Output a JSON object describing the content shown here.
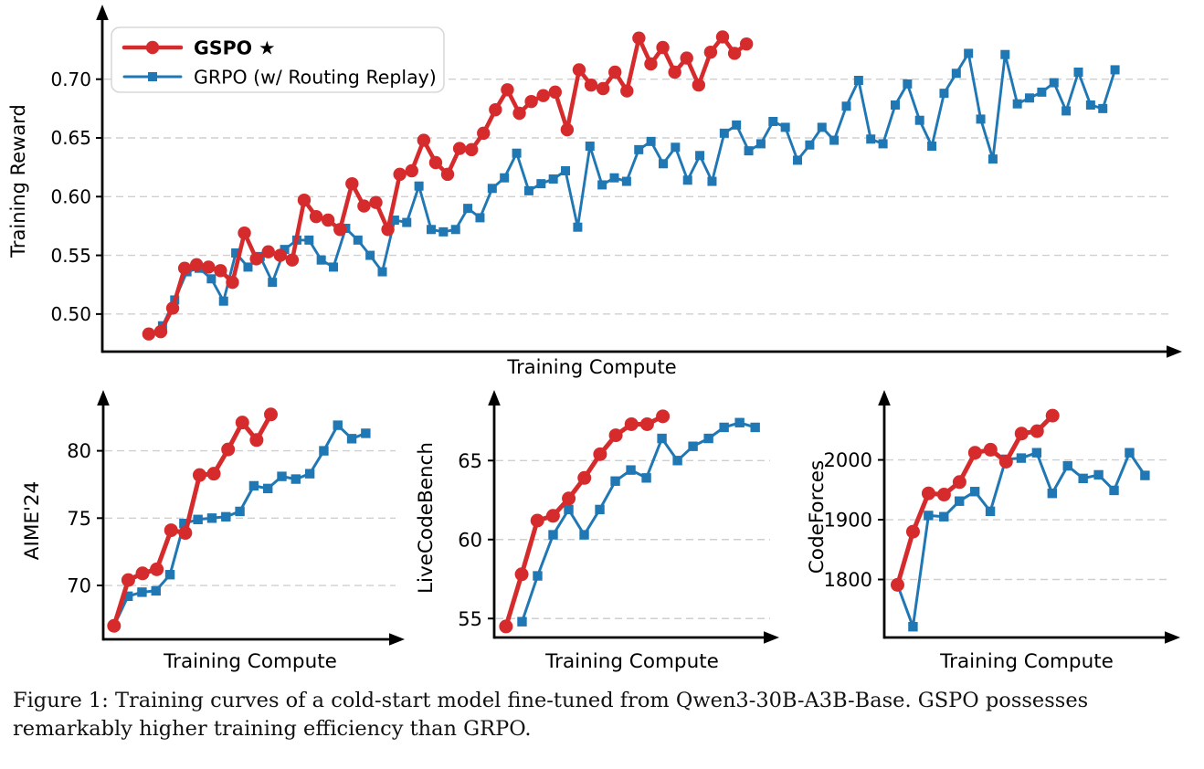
{
  "figure": {
    "caption": "Figure 1: Training curves of a cold-start model fine-tuned from Qwen3-30B-A3B-Base. GSPO possesses remarkably higher training efficiency than GRPO."
  },
  "colors": {
    "gspo": "#d62b2c",
    "grpo": "#1f77b4",
    "grid": "#cfcfcf",
    "axis": "#000000",
    "text": "#000000",
    "legend_border": "#d8d8d8",
    "legend_bg": "#ffffff"
  },
  "legend": {
    "position": "upper left",
    "items": [
      {
        "label": "GSPO ★",
        "bold": true,
        "series": "gspo"
      },
      {
        "label": "GRPO (w/ Routing Replay)",
        "bold": false,
        "series": "grpo"
      }
    ]
  },
  "chart_data": [
    {
      "id": "training-reward",
      "type": "line",
      "title": "",
      "xlabel": "Training Compute",
      "ylabel": "Training Reward",
      "ylim": [
        0.468,
        0.755
      ],
      "yticks": [
        0.5,
        0.55,
        0.6,
        0.65,
        0.7
      ],
      "ytick_labels": [
        "0.50",
        "0.55",
        "0.60",
        "0.65",
        "0.70"
      ],
      "grid": true,
      "has_legend": true,
      "series": [
        {
          "name": "GSPO",
          "key": "gspo",
          "marker": "circle",
          "x_span_frac": [
            0.044,
            0.61
          ],
          "values": [
            0.483,
            0.485,
            0.505,
            0.539,
            0.542,
            0.54,
            0.537,
            0.527,
            0.569,
            0.547,
            0.553,
            0.55,
            0.546,
            0.597,
            0.583,
            0.58,
            0.572,
            0.611,
            0.592,
            0.595,
            0.572,
            0.619,
            0.622,
            0.648,
            0.629,
            0.619,
            0.641,
            0.64,
            0.654,
            0.674,
            0.691,
            0.671,
            0.681,
            0.686,
            0.689,
            0.657,
            0.708,
            0.695,
            0.692,
            0.706,
            0.69,
            0.735,
            0.713,
            0.727,
            0.706,
            0.718,
            0.695,
            0.723,
            0.736,
            0.722,
            0.73
          ]
        },
        {
          "name": "GRPO (w/ Routing Replay)",
          "key": "grpo",
          "marker": "square",
          "x_span_frac": [
            0.057,
            0.959
          ],
          "values": [
            0.49,
            0.512,
            0.536,
            0.539,
            0.53,
            0.511,
            0.552,
            0.54,
            0.549,
            0.527,
            0.555,
            0.563,
            0.563,
            0.546,
            0.54,
            0.573,
            0.563,
            0.55,
            0.536,
            0.58,
            0.578,
            0.609,
            0.572,
            0.57,
            0.572,
            0.59,
            0.582,
            0.607,
            0.616,
            0.637,
            0.605,
            0.611,
            0.615,
            0.622,
            0.574,
            0.643,
            0.61,
            0.616,
            0.613,
            0.64,
            0.647,
            0.628,
            0.642,
            0.614,
            0.635,
            0.613,
            0.654,
            0.661,
            0.639,
            0.645,
            0.664,
            0.659,
            0.631,
            0.644,
            0.659,
            0.648,
            0.677,
            0.699,
            0.649,
            0.645,
            0.678,
            0.696,
            0.665,
            0.643,
            0.688,
            0.705,
            0.722,
            0.666,
            0.632,
            0.721,
            0.679,
            0.684,
            0.689,
            0.697,
            0.673,
            0.706,
            0.678,
            0.675,
            0.708
          ]
        }
      ]
    },
    {
      "id": "aime24",
      "type": "line",
      "title": "",
      "xlabel": "Training Compute",
      "ylabel": "AIME'24",
      "ylim": [
        66.0,
        83.5
      ],
      "yticks": [
        70,
        75,
        80
      ],
      "ytick_labels": [
        "70",
        "75",
        "80"
      ],
      "grid": true,
      "has_legend": false,
      "series": [
        {
          "name": "GSPO",
          "key": "gspo",
          "marker": "circle",
          "x_span_frac": [
            0.038,
            0.59
          ],
          "values": [
            67.0,
            70.4,
            70.9,
            71.2,
            74.1,
            73.9,
            78.2,
            78.3,
            80.1,
            82.1,
            80.8,
            82.7
          ]
        },
        {
          "name": "GRPO (w/ Routing Replay)",
          "key": "grpo",
          "marker": "square",
          "x_span_frac": [
            0.038,
            0.924
          ],
          "values": [
            67.0,
            69.2,
            69.5,
            69.6,
            70.8,
            74.6,
            74.9,
            75.0,
            75.1,
            75.5,
            77.4,
            77.2,
            78.1,
            77.9,
            78.3,
            80.0,
            81.9,
            80.9,
            81.3
          ]
        }
      ]
    },
    {
      "id": "livecodebench",
      "type": "line",
      "title": "",
      "xlabel": "Training Compute",
      "ylabel": "LiveCodeBench",
      "ylim": [
        53.8,
        68.6
      ],
      "yticks": [
        55,
        60,
        65
      ],
      "ytick_labels": [
        "55",
        "60",
        "65"
      ],
      "grid": true,
      "has_legend": false,
      "series": [
        {
          "name": "GSPO",
          "key": "gspo",
          "marker": "circle",
          "x_span_frac": [
            0.044,
            0.63
          ],
          "values": [
            54.5,
            57.8,
            61.2,
            61.5,
            62.6,
            63.9,
            65.4,
            66.6,
            67.3,
            67.3,
            67.8
          ]
        },
        {
          "name": "GRPO (w/ Routing Replay)",
          "key": "grpo",
          "marker": "square",
          "x_span_frac": [
            0.104,
            0.975
          ],
          "values": [
            54.8,
            57.7,
            60.3,
            61.9,
            60.3,
            61.9,
            63.7,
            64.4,
            63.9,
            66.4,
            65.0,
            65.9,
            66.4,
            67.1,
            67.4,
            67.1
          ]
        }
      ]
    },
    {
      "id": "codeforces",
      "type": "line",
      "title": "",
      "xlabel": "Training Compute",
      "ylabel": "CodeForces",
      "ylim": [
        1703,
        2094
      ],
      "yticks": [
        1800,
        1900,
        2000
      ],
      "ytick_labels": [
        "1800",
        "1900",
        "2000"
      ],
      "grid": true,
      "has_legend": false,
      "series": [
        {
          "name": "GSPO",
          "key": "gspo",
          "marker": "circle",
          "x_span_frac": [
            0.048,
            0.61
          ],
          "values": [
            1791,
            1880,
            1944,
            1942,
            1963,
            2012,
            2017,
            1997,
            2044,
            2048,
            2074
          ]
        },
        {
          "name": "GRPO (w/ Routing Replay)",
          "key": "grpo",
          "marker": "square",
          "x_span_frac": [
            0.048,
            0.945
          ],
          "values": [
            1791,
            1721,
            1907,
            1905,
            1931,
            1947,
            1914,
            2001,
            2003,
            2012,
            1944,
            1990,
            1969,
            1975,
            1949,
            2012,
            1974
          ]
        }
      ]
    }
  ]
}
